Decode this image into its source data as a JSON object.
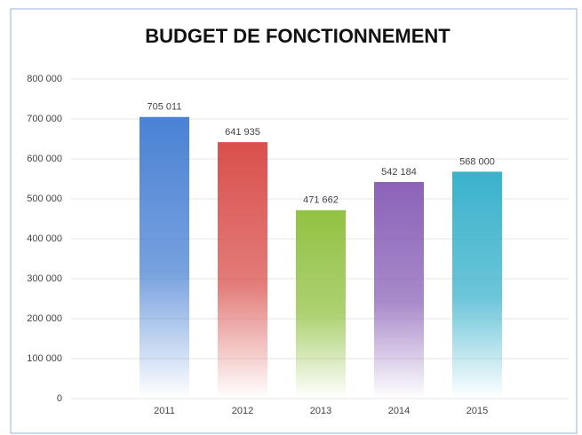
{
  "chart_data": {
    "type": "bar",
    "title": "BUDGET DE FONCTIONNEMENT",
    "categories": [
      "2011",
      "2012",
      "2013",
      "2014",
      "2015"
    ],
    "values": [
      705011,
      641935,
      471662,
      542184,
      568000
    ],
    "value_labels": [
      "705 011",
      "641 935",
      "471 662",
      "542 184",
      "568 000"
    ],
    "colors": [
      "#4a82d4",
      "#d9504c",
      "#92c243",
      "#8b62b8",
      "#3ab2cc"
    ],
    "ylim": [
      0,
      800000
    ],
    "yticks": [
      {
        "value": 0,
        "label": "0"
      },
      {
        "value": 100000,
        "label": "100 000"
      },
      {
        "value": 200000,
        "label": "200 000"
      },
      {
        "value": 300000,
        "label": "300 000"
      },
      {
        "value": 400000,
        "label": "400 000"
      },
      {
        "value": 500000,
        "label": "500 000"
      },
      {
        "value": 600000,
        "label": "600 000"
      },
      {
        "value": 700000,
        "label": "700 000"
      },
      {
        "value": 800000,
        "label": "800 000"
      }
    ],
    "grid": true
  }
}
